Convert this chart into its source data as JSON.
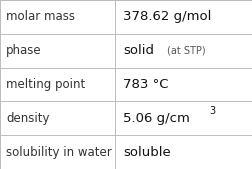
{
  "rows": [
    {
      "label": "molar mass",
      "value": "378.62 g/mol",
      "value_suffix": null,
      "value_superscript": null
    },
    {
      "label": "phase",
      "value": "solid",
      "value_suffix": "(at STP)",
      "value_superscript": null
    },
    {
      "label": "melting point",
      "value": "783 °C",
      "value_suffix": null,
      "value_superscript": null
    },
    {
      "label": "density",
      "value": "5.06 g/cm",
      "value_suffix": null,
      "value_superscript": "3"
    },
    {
      "label": "solubility in water",
      "value": "soluble",
      "value_suffix": null,
      "value_superscript": null
    }
  ],
  "col_split": 0.455,
  "background_color": "#ffffff",
  "line_color": "#bbbbbb",
  "label_fontsize": 8.5,
  "value_fontsize": 9.5,
  "suffix_fontsize": 7.0,
  "sup_fontsize": 7.0,
  "label_color": "#333333",
  "value_color": "#111111",
  "suffix_color": "#555555"
}
